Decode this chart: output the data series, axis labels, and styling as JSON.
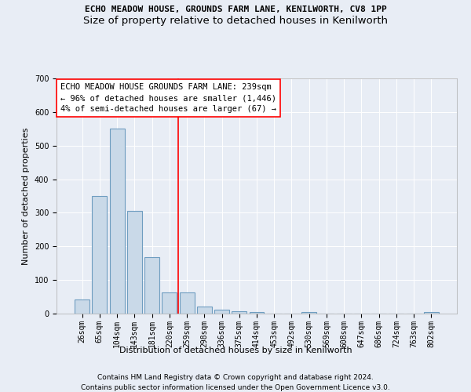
{
  "title1": "ECHO MEADOW HOUSE, GROUNDS FARM LANE, KENILWORTH, CV8 1PP",
  "title2": "Size of property relative to detached houses in Kenilworth",
  "xlabel": "Distribution of detached houses by size in Kenilworth",
  "ylabel": "Number of detached properties",
  "categories": [
    "26sqm",
    "65sqm",
    "104sqm",
    "143sqm",
    "181sqm",
    "220sqm",
    "259sqm",
    "298sqm",
    "336sqm",
    "375sqm",
    "414sqm",
    "453sqm",
    "492sqm",
    "530sqm",
    "569sqm",
    "608sqm",
    "647sqm",
    "686sqm",
    "724sqm",
    "763sqm",
    "802sqm"
  ],
  "values": [
    42,
    350,
    550,
    305,
    168,
    62,
    62,
    22,
    12,
    7,
    5,
    0,
    0,
    5,
    0,
    0,
    0,
    0,
    0,
    0,
    5
  ],
  "bar_color": "#c9d9e8",
  "bar_edge_color": "#6e9dc0",
  "annotation_text": "ECHO MEADOW HOUSE GROUNDS FARM LANE: 239sqm\n← 96% of detached houses are smaller (1,446)\n4% of semi-detached houses are larger (67) →",
  "ylim": [
    0,
    700
  ],
  "yticks": [
    0,
    100,
    200,
    300,
    400,
    500,
    600,
    700
  ],
  "footer1": "Contains HM Land Registry data © Crown copyright and database right 2024.",
  "footer2": "Contains public sector information licensed under the Open Government Licence v3.0.",
  "bg_color": "#e8edf5",
  "plot_bg_color": "#e8edf5",
  "grid_color": "#ffffff",
  "title1_fontsize": 8,
  "title2_fontsize": 9.5,
  "annotation_fontsize": 7.5,
  "axis_label_fontsize": 8,
  "tick_fontsize": 7,
  "footer_fontsize": 6.5,
  "red_line_x": 5.5
}
